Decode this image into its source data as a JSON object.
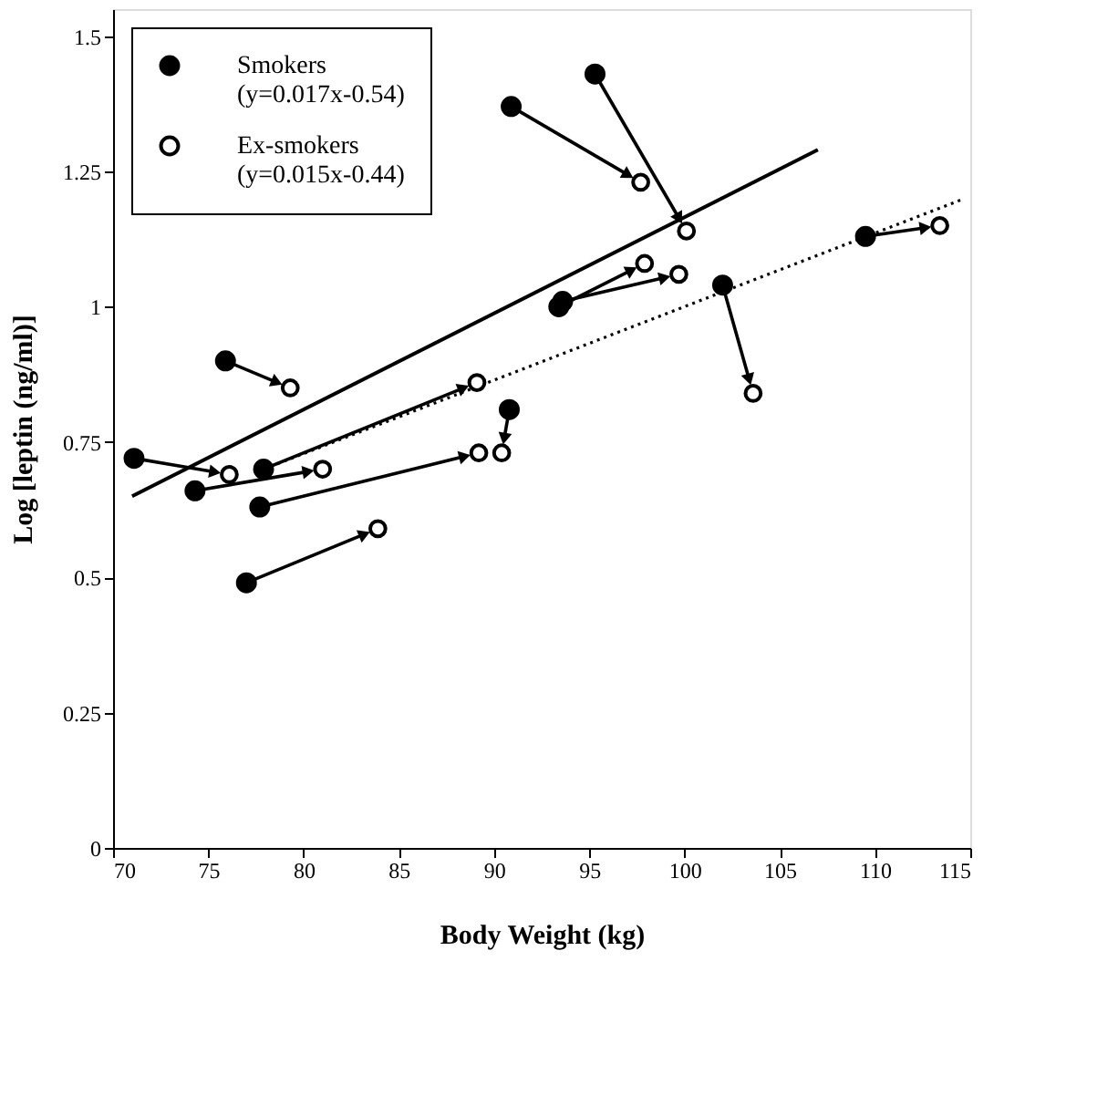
{
  "chart_data": {
    "type": "scatter",
    "xlabel": "Body Weight (kg)",
    "ylabel": "Log [leptin (ng/ml)]",
    "xlim": [
      70,
      115
    ],
    "xticks": [
      70,
      75,
      80,
      85,
      90,
      95,
      100,
      105,
      110,
      115
    ],
    "ylim": [
      0,
      1.55
    ],
    "yticks": [
      0,
      0.25,
      0.5,
      0.75,
      1,
      1.25,
      1.5
    ],
    "grid": false,
    "legend": "top left",
    "series": [
      {
        "name": "Smokers (y=0.017x-0.54)",
        "marker": "circle",
        "color": "#000000",
        "x": [
          71.1,
          74.3,
          75.9,
          77.9,
          77.7,
          77.0,
          90.8,
          90.9,
          95.3,
          93.4,
          93.6,
          102.0,
          109.5
        ],
        "values": [
          0.72,
          0.66,
          0.9,
          0.7,
          0.63,
          0.49,
          0.81,
          1.37,
          1.43,
          1.0,
          1.01,
          1.04,
          1.13
        ]
      },
      {
        "name": "Ex-smokers (y=0.015x-0.44)",
        "marker": "circle",
        "color": "#000000",
        "x": [
          76.1,
          81.0,
          79.3,
          89.1,
          89.2,
          83.9,
          90.4,
          97.7,
          100.1,
          97.9,
          99.7,
          103.6,
          113.4
        ],
        "values": [
          0.69,
          0.7,
          0.85,
          0.86,
          0.73,
          0.59,
          0.73,
          1.23,
          1.14,
          1.08,
          1.06,
          0.84,
          1.15
        ]
      },
      {
        "type": "line",
        "marker": "none",
        "color": "#000000",
        "line_style": "solid",
        "x": [
          71.0,
          107.0
        ],
        "values": [
          0.65,
          1.29
        ]
      },
      {
        "type": "line",
        "marker": "none",
        "color": "#000000",
        "line_style": "dotted",
        "x": [
          77.9,
          114.7
        ],
        "values": [
          0.7,
          1.2
        ]
      }
    ]
  }
}
